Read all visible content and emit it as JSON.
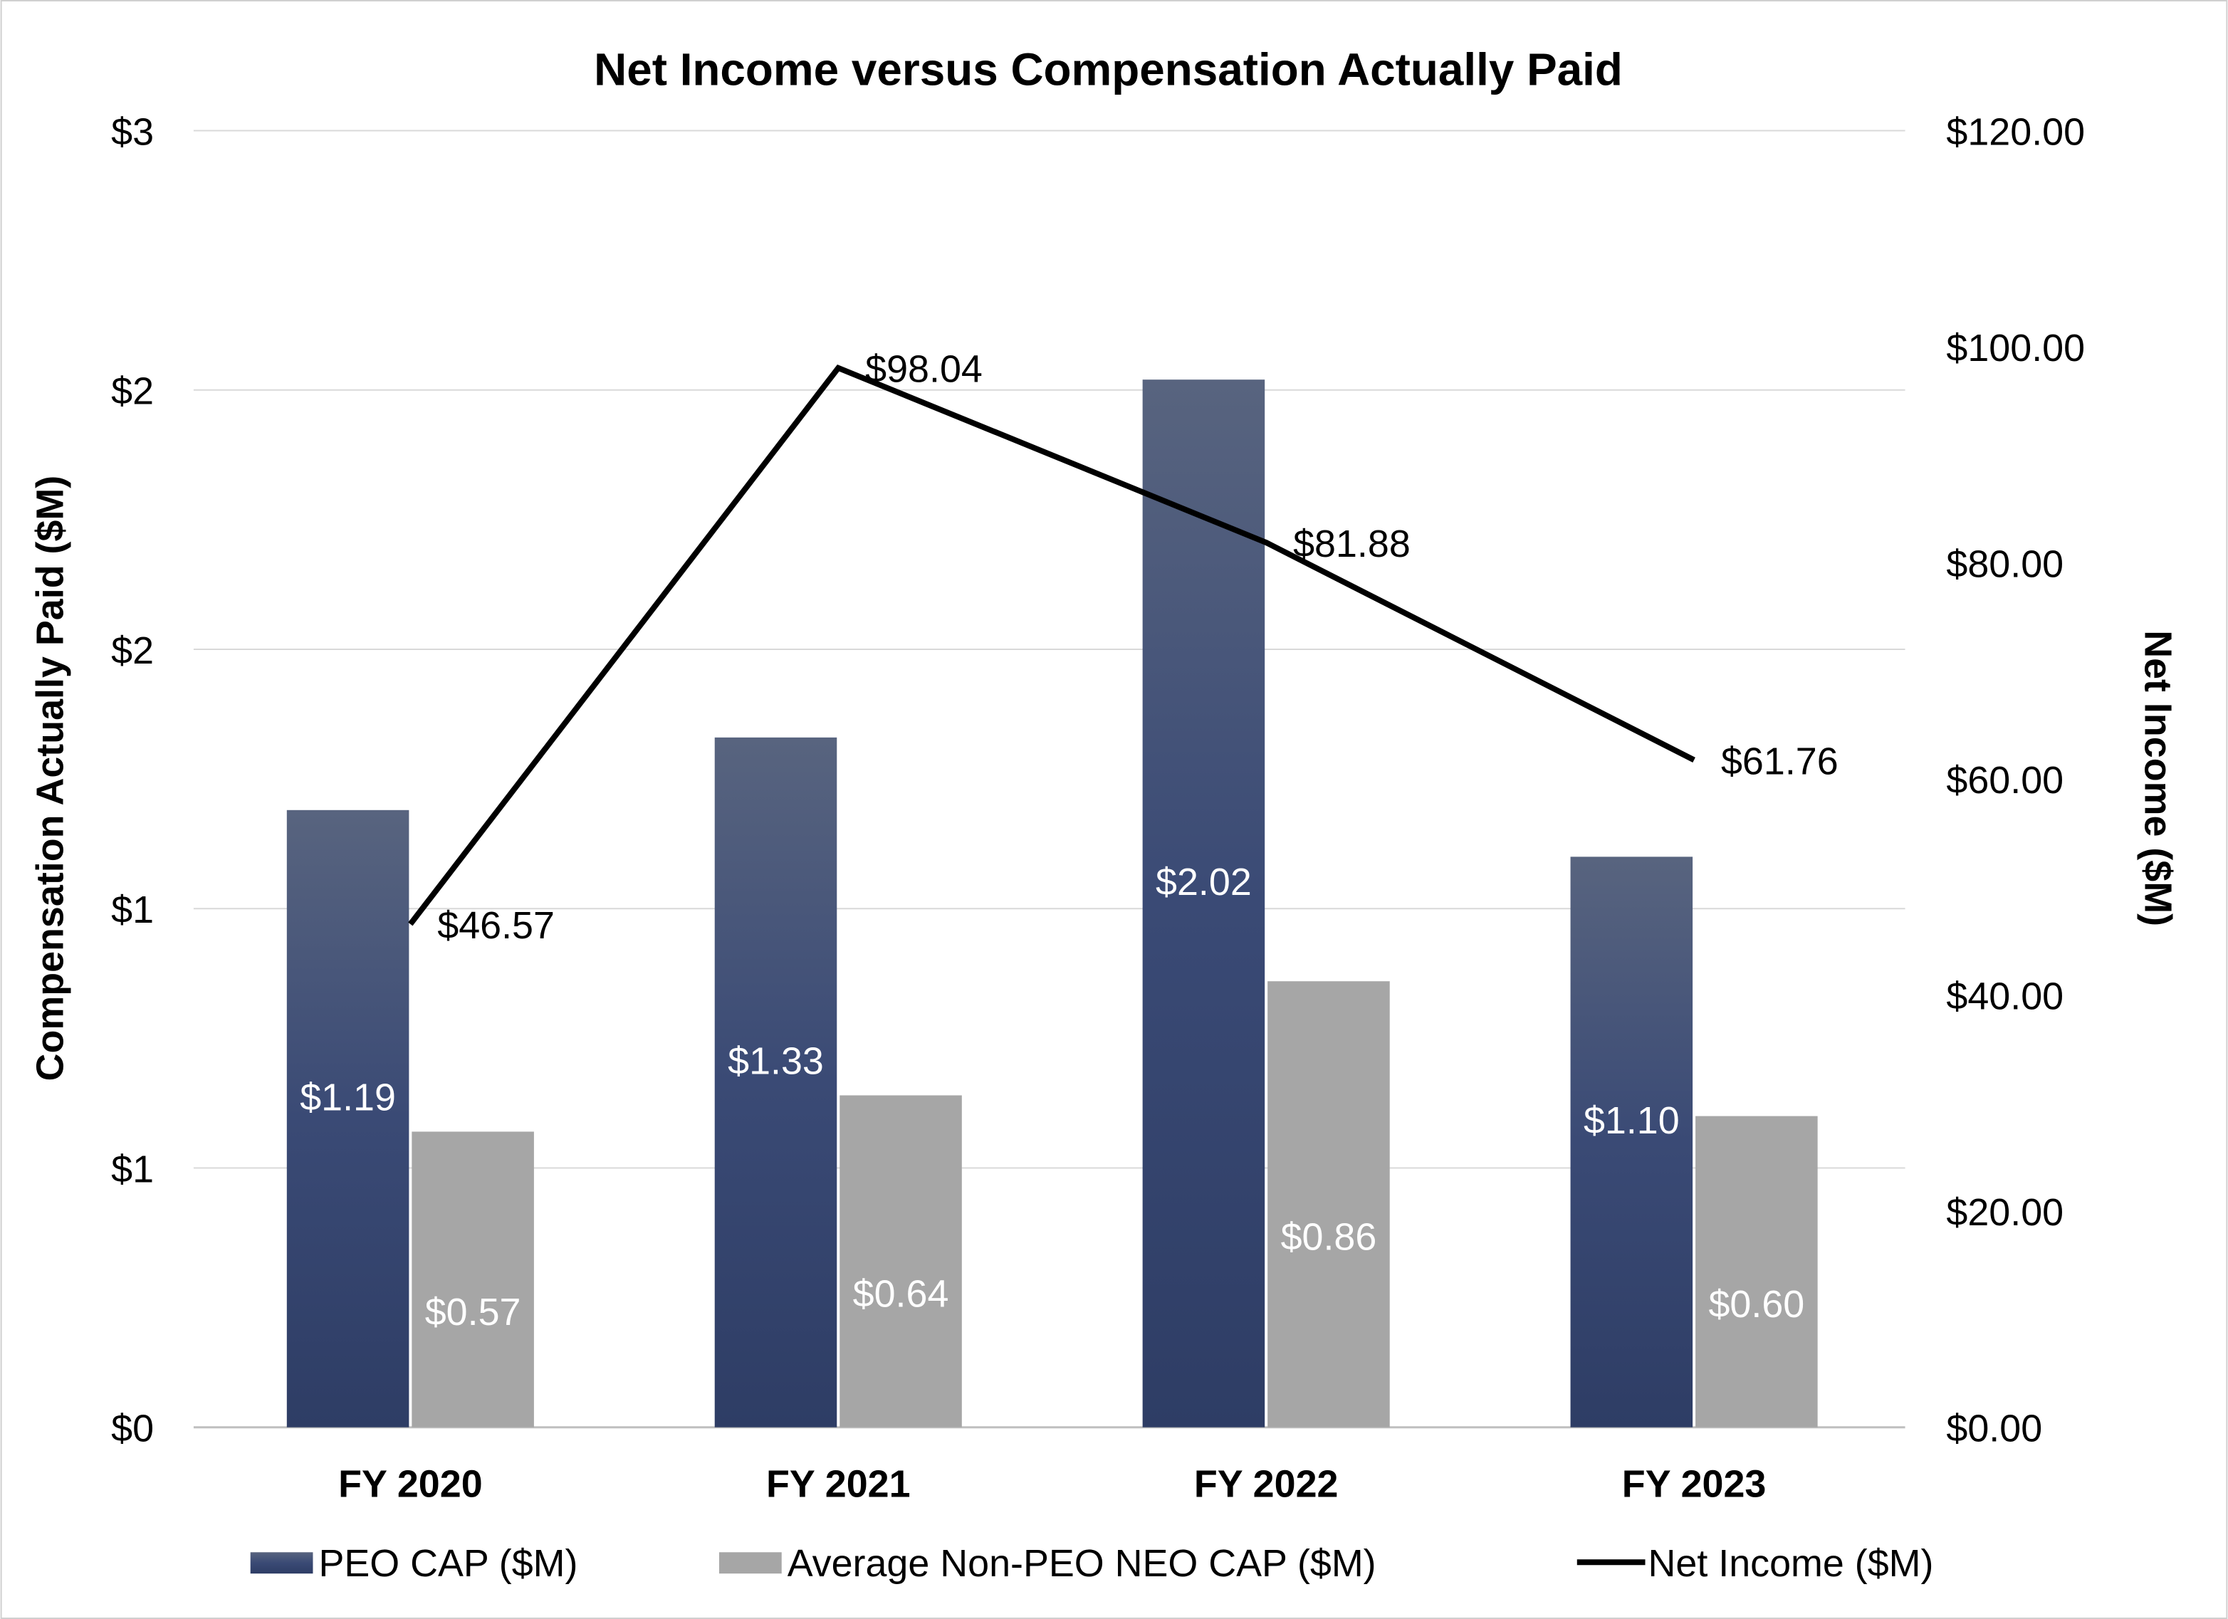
{
  "chart_data": {
    "type": "bar+line",
    "title": "Net Income versus Compensation Actually Paid",
    "categories": [
      "FY 2020",
      "FY 2021",
      "FY 2022",
      "FY 2023"
    ],
    "series": [
      {
        "name": "PEO CAP ($M)",
        "type": "bar",
        "axis": "left",
        "values": [
          1.19,
          1.33,
          2.02,
          1.1
        ],
        "labels": [
          "$1.19",
          "$1.33",
          "$2.02",
          "$1.10"
        ],
        "color": "#344670"
      },
      {
        "name": "Average Non-PEO NEO CAP ($M)",
        "type": "bar",
        "axis": "left",
        "values": [
          0.57,
          0.64,
          0.86,
          0.6
        ],
        "labels": [
          "$0.57",
          "$0.64",
          "$0.86",
          "$0.60"
        ],
        "color": "#a6a6a6"
      },
      {
        "name": "Net Income ($M)",
        "type": "line",
        "axis": "right",
        "values": [
          46.57,
          98.04,
          81.88,
          61.76
        ],
        "labels": [
          "$46.57",
          "$98.04",
          "$81.88",
          "$61.76"
        ],
        "color": "#000000"
      }
    ],
    "ylabel": "Compensation Actually Paid ($M)",
    "ylim": [
      0,
      2.5
    ],
    "yticks": [
      0,
      0.5,
      1,
      1.5,
      2,
      2.5
    ],
    "ytick_labels": [
      "$0",
      "$1",
      "$1",
      "$2",
      "$2",
      "$3"
    ],
    "y2label": "Net Income ($M)",
    "y2lim": [
      0,
      120
    ],
    "y2ticks": [
      0,
      20,
      40,
      60,
      80,
      100,
      120
    ],
    "y2tick_labels": [
      "$0.00",
      "$20.00",
      "$40.00",
      "$60.00",
      "$80.00",
      "$100.00",
      "$120.00"
    ],
    "grid": true,
    "legend": "bottom"
  }
}
